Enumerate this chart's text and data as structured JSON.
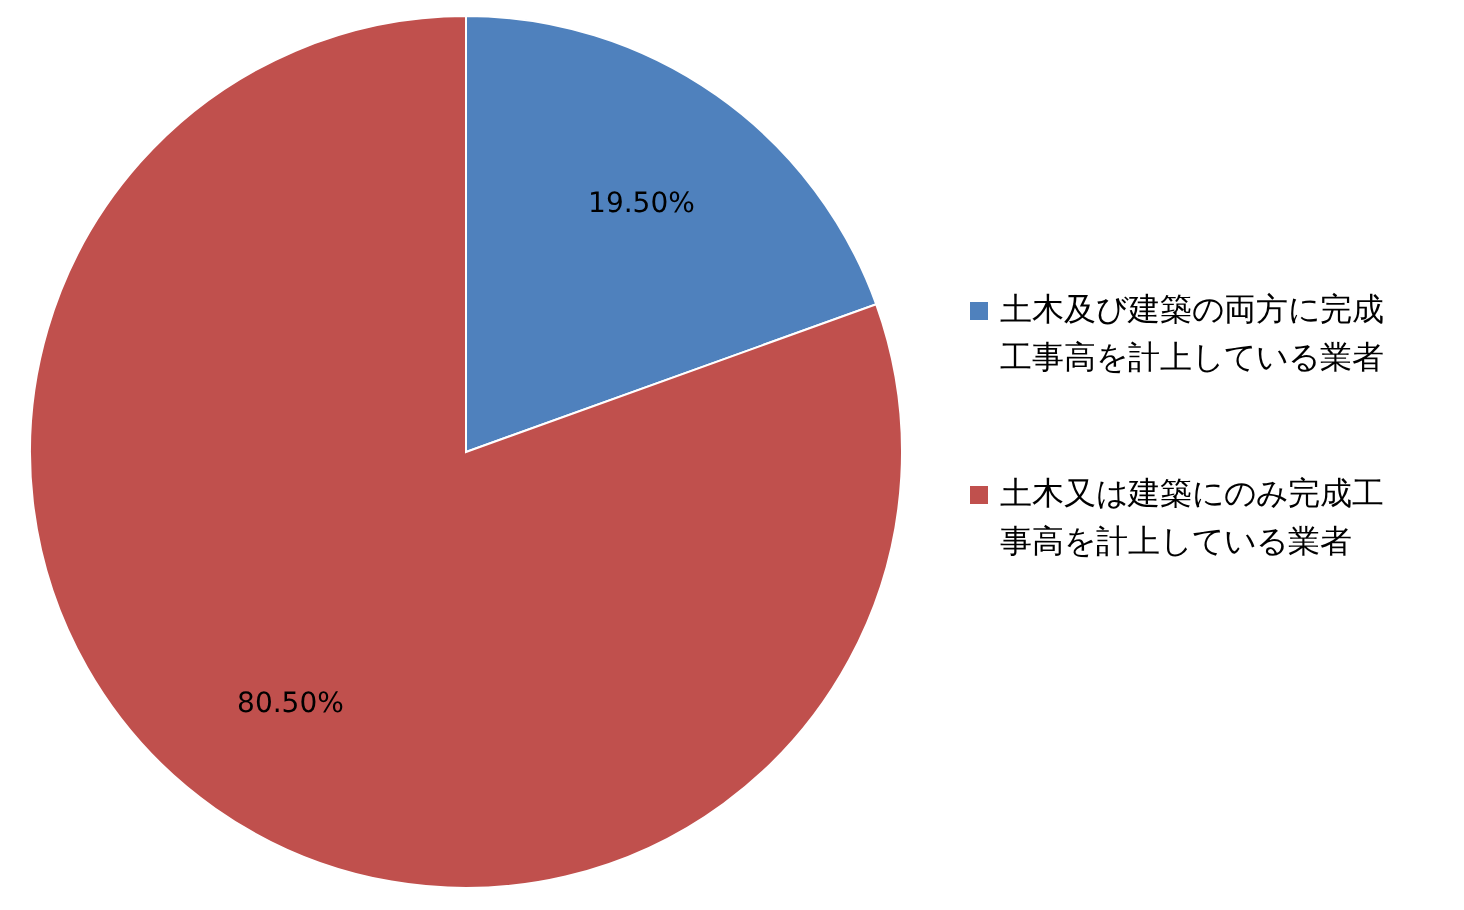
{
  "chart_data": {
    "type": "pie",
    "categories": [
      "土木及び建築の両方に完成工事高を計上している業者",
      "土木又は建築にのみ完成工事高を計上している業者"
    ],
    "values": [
      19.5,
      80.5
    ],
    "colors": [
      "#4f81bd",
      "#c0504d"
    ],
    "value_labels": [
      "19.50%",
      "80.50%"
    ],
    "legend": "right"
  }
}
